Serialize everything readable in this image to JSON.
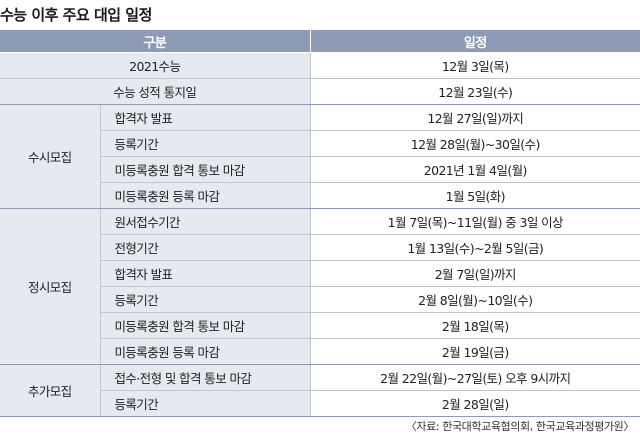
{
  "title": "수능 이후 주요 대입 일정",
  "header": {
    "col1": "구분",
    "col2": "일정"
  },
  "top_rows": [
    {
      "label": "2021수능",
      "schedule": "12월 3일(목)"
    },
    {
      "label": "수능 성적 통지일",
      "schedule": "12월 23일(수)"
    }
  ],
  "groups": [
    {
      "name": "수시모집",
      "rows": [
        {
          "label": "합격자 발표",
          "schedule": "12월 27일(일)까지"
        },
        {
          "label": "등록기간",
          "schedule": "12월 28일(월)~30일(수)"
        },
        {
          "label": "미등록충원 합격 통보 마감",
          "schedule": "2021년 1월 4일(월)"
        },
        {
          "label": "미등록충원 등록 마감",
          "schedule": "1월 5일(화)"
        }
      ]
    },
    {
      "name": "정시모집",
      "rows": [
        {
          "label": "원서접수기간",
          "schedule": "1월 7일(목)~11일(월) 중 3일 이상"
        },
        {
          "label": "전형기간",
          "schedule": "1월 13일(수)~2월 5일(금)"
        },
        {
          "label": "합격자 발표",
          "schedule": "2월 7일(일)까지"
        },
        {
          "label": "등록기간",
          "schedule": "2월 8일(월)~10일(수)"
        },
        {
          "label": "미등록충원 합격 통보 마감",
          "schedule": "2월 18일(목)"
        },
        {
          "label": "미등록충원 등록 마감",
          "schedule": "2월 19일(금)"
        }
      ]
    },
    {
      "name": "추가모집",
      "rows": [
        {
          "label": "접수·전형 및 합격 통보 마감",
          "schedule": "2월 22일(월)~27일(토) 오후 9시까지"
        },
        {
          "label": "등록기간",
          "schedule": "2월 28일(일)"
        }
      ]
    }
  ],
  "source": "〈자료: 한국대학교육협의회, 한국교육과정평가원〉"
}
